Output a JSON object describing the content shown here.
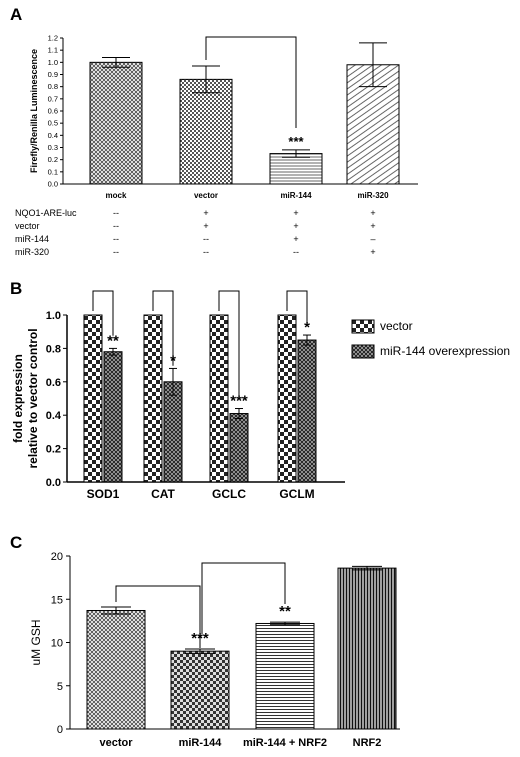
{
  "panel_labels": [
    "A",
    "B",
    "C"
  ],
  "colors": {
    "axis": "#000000",
    "bar_outline": "#000000",
    "pattern_dark": "#333333",
    "pattern_light": "#ffffff"
  },
  "chart_data": [
    {
      "type": "bar",
      "ylabel": "Firefly/Renilla Luminescence",
      "ylim": [
        0,
        1.2
      ],
      "yticks": [
        "0.0",
        "0.1",
        "0.2",
        "0.3",
        "0.4",
        "0.5",
        "0.6",
        "0.7",
        "0.8",
        "0.9",
        "1.0",
        "1.1",
        "1.2"
      ],
      "categories": [
        "mock",
        "vector",
        "miR-144",
        "miR-320"
      ],
      "values": [
        1.0,
        0.86,
        0.25,
        0.98
      ],
      "errors": [
        0.04,
        0.11,
        0.03,
        0.18
      ],
      "significance": [
        "",
        "",
        "***",
        ""
      ],
      "comparisons": [
        {
          "from": 1,
          "to": 2
        }
      ],
      "condition_table": {
        "rows": [
          {
            "label": "NQO1-ARE-luc",
            "cells": [
              "--",
              "+",
              "+",
              "+"
            ]
          },
          {
            "label": "vector",
            "cells": [
              "--",
              "+",
              "+",
              "+"
            ]
          },
          {
            "label": "miR-144",
            "cells": [
              "--",
              "--",
              "+",
              "–"
            ]
          },
          {
            "label": "miR-320",
            "cells": [
              "--",
              "--",
              "--",
              "+"
            ]
          }
        ]
      }
    },
    {
      "type": "bar",
      "ylabel_lines": [
        "fold expression",
        "relative to vector control"
      ],
      "ylim": [
        0,
        1.0
      ],
      "yticks": [
        "0.0",
        "0.2",
        "0.4",
        "0.6",
        "0.8",
        "1.0"
      ],
      "categories": [
        "SOD1",
        "CAT",
        "GCLC",
        "GCLM"
      ],
      "series": [
        {
          "name": "vector",
          "values": [
            1.0,
            1.0,
            1.0,
            1.0
          ],
          "errors": [
            0,
            0,
            0,
            0
          ]
        },
        {
          "name": "miR-144 overexpression",
          "values": [
            0.78,
            0.6,
            0.41,
            0.85
          ],
          "errors": [
            0.02,
            0.08,
            0.03,
            0.03
          ]
        }
      ],
      "significance": [
        "**",
        "*",
        "***",
        "*"
      ],
      "legend_position": "right"
    },
    {
      "type": "bar",
      "ylabel": "uM GSH",
      "ylim": [
        0,
        20
      ],
      "yticks": [
        "0",
        "5",
        "10",
        "15",
        "20"
      ],
      "categories": [
        "vector",
        "miR-144",
        "miR-144 + NRF2",
        "NRF2"
      ],
      "values": [
        13.7,
        9.0,
        12.2,
        18.6
      ],
      "errors": [
        0.4,
        0.25,
        0.15,
        0.2
      ],
      "significance": [
        "",
        "***",
        "**",
        ""
      ],
      "comparisons": [
        {
          "from": 0,
          "to": 1
        },
        {
          "from": 1,
          "to": 2
        }
      ]
    }
  ]
}
